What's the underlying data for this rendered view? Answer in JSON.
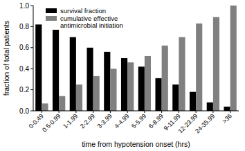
{
  "chart_data": {
    "type": "bar",
    "x_label": "time from hypotension onset (hrs)",
    "y_label": "fraction of total patients",
    "categories": [
      "0-0.49",
      "0.5-0.99",
      "1-1.99",
      "2-2.99",
      "3-3.99",
      "4-4.99",
      "5-5.99",
      "6-8.99",
      "9-11.99",
      "12-23.99",
      "24-35.99",
      ">36"
    ],
    "series": [
      {
        "name": "survival fraction",
        "color": "#000000",
        "values": [
          0.82,
          0.77,
          0.7,
          0.6,
          0.56,
          0.5,
          0.42,
          0.31,
          0.25,
          0.18,
          0.08,
          0.04
        ]
      },
      {
        "name": "cumulative effective antimicrobial initiation",
        "color": "#808080",
        "values": [
          0.07,
          0.14,
          0.25,
          0.33,
          0.4,
          0.46,
          0.52,
          0.62,
          0.7,
          0.83,
          0.89,
          1.0
        ]
      }
    ],
    "ylim": [
      0,
      1
    ],
    "yticks": [
      {
        "value": 0,
        "label": "0.0"
      },
      0.2,
      0.4,
      0.6,
      0.8,
      {
        "value": 1,
        "label": "1.0"
      }
    ],
    "legend": "upper left",
    "grid": false
  }
}
